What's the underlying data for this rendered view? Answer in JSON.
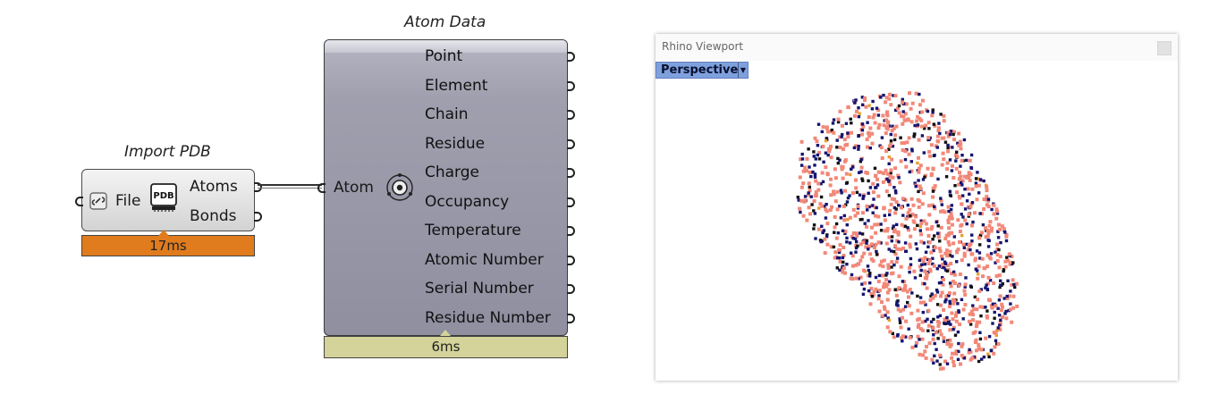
{
  "import_pdb": {
    "title": "Import PDB",
    "input_label": "File",
    "outputs": [
      "Atoms",
      "Bonds"
    ],
    "icon_text": "PDB",
    "timer": "17ms"
  },
  "atom_data": {
    "title": "Atom Data",
    "input_label": "Atom",
    "outputs": [
      "Point",
      "Element",
      "Chain",
      "Residue",
      "Charge",
      "Occupancy",
      "Temperature",
      "Atomic Number",
      "Serial Number",
      "Residue Number"
    ],
    "timer": "6ms"
  },
  "viewport": {
    "title": "Rhino Viewport",
    "view_name": "Perspective",
    "colors": {
      "salmon": "#f28878",
      "navy": "#141470",
      "black": "#111111",
      "orange": "#e8a030"
    }
  },
  "colors": {
    "import_timer": "#e07b1e",
    "atom_timer": "#d3d39a",
    "viewport_tab": "#7ea1dd"
  }
}
